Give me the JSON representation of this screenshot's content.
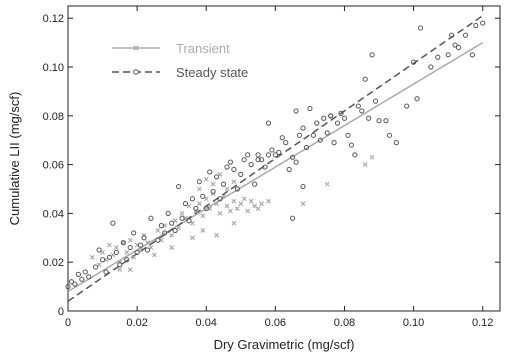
{
  "chart_data": {
    "type": "scatter",
    "xlabel": "Dry Gravimetric (mg/scf)",
    "ylabel": "Cumulative LII (mg/scf)",
    "xlim": [
      0,
      0.125
    ],
    "ylim": [
      0,
      0.125
    ],
    "x_ticks": [
      0,
      0.02,
      0.04,
      0.06,
      0.08,
      0.1,
      0.12
    ],
    "y_ticks": [
      0,
      0.02,
      0.04,
      0.06,
      0.08,
      0.1,
      0.12
    ],
    "x_tick_labels": [
      "0",
      "0.02",
      "0.04",
      "0.06",
      "0.08",
      "0.10",
      "0.12"
    ],
    "y_tick_labels": [
      "0",
      "0.02",
      "0.04",
      "0.06",
      "0.08",
      "0.10",
      "0.12"
    ],
    "grid": false,
    "legend_position": "top-left",
    "series": [
      {
        "name": "Transient",
        "marker": "x",
        "color": "#aaaaaa",
        "line_style": "solid",
        "fit": {
          "x": [
            0,
            0.12
          ],
          "y": [
            0.008,
            0.11
          ]
        },
        "points": [
          [
            0.007,
            0.022
          ],
          [
            0.009,
            0.019
          ],
          [
            0.01,
            0.024
          ],
          [
            0.011,
            0.021
          ],
          [
            0.012,
            0.027
          ],
          [
            0.013,
            0.023
          ],
          [
            0.014,
            0.026
          ],
          [
            0.015,
            0.02
          ],
          [
            0.016,
            0.028
          ],
          [
            0.017,
            0.024
          ],
          [
            0.018,
            0.029
          ],
          [
            0.019,
            0.022
          ],
          [
            0.02,
            0.027
          ],
          [
            0.021,
            0.025
          ],
          [
            0.022,
            0.031
          ],
          [
            0.023,
            0.028
          ],
          [
            0.024,
            0.026
          ],
          [
            0.026,
            0.033
          ],
          [
            0.027,
            0.029
          ],
          [
            0.028,
            0.035
          ],
          [
            0.03,
            0.031
          ],
          [
            0.031,
            0.037
          ],
          [
            0.032,
            0.034
          ],
          [
            0.033,
            0.04
          ],
          [
            0.034,
            0.038
          ],
          [
            0.035,
            0.043
          ],
          [
            0.036,
            0.036
          ],
          [
            0.037,
            0.041
          ],
          [
            0.038,
            0.044
          ],
          [
            0.039,
            0.039
          ],
          [
            0.04,
            0.046
          ],
          [
            0.041,
            0.042
          ],
          [
            0.042,
            0.048
          ],
          [
            0.043,
            0.044
          ],
          [
            0.044,
            0.04
          ],
          [
            0.045,
            0.047
          ],
          [
            0.046,
            0.043
          ],
          [
            0.047,
            0.041
          ],
          [
            0.048,
            0.045
          ],
          [
            0.049,
            0.042
          ],
          [
            0.05,
            0.044
          ],
          [
            0.051,
            0.046
          ],
          [
            0.052,
            0.041
          ],
          [
            0.053,
            0.045
          ],
          [
            0.054,
            0.043
          ],
          [
            0.055,
            0.042
          ],
          [
            0.056,
            0.044
          ],
          [
            0.038,
            0.05
          ],
          [
            0.04,
            0.054
          ],
          [
            0.042,
            0.052
          ],
          [
            0.044,
            0.056
          ],
          [
            0.046,
            0.05
          ],
          [
            0.048,
            0.053
          ],
          [
            0.036,
            0.03
          ],
          [
            0.039,
            0.033
          ],
          [
            0.058,
            0.045
          ],
          [
            0.068,
            0.044
          ],
          [
            0.075,
            0.052
          ],
          [
            0.086,
            0.06
          ],
          [
            0.088,
            0.063
          ],
          [
            0.03,
            0.026
          ],
          [
            0.025,
            0.023
          ],
          [
            0.018,
            0.017
          ],
          [
            0.015,
            0.017
          ],
          [
            0.043,
            0.031
          ],
          [
            0.048,
            0.036
          ]
        ]
      },
      {
        "name": "Steady state",
        "marker": "o",
        "color": "#555555",
        "line_style": "dashed",
        "fit": {
          "x": [
            0,
            0.12
          ],
          "y": [
            0.004,
            0.121
          ]
        },
        "points": [
          [
            0.0,
            0.01
          ],
          [
            0.001,
            0.012
          ],
          [
            0.002,
            0.011
          ],
          [
            0.003,
            0.015
          ],
          [
            0.004,
            0.013
          ],
          [
            0.005,
            0.016
          ],
          [
            0.006,
            0.014
          ],
          [
            0.008,
            0.018
          ],
          [
            0.009,
            0.025
          ],
          [
            0.01,
            0.021
          ],
          [
            0.011,
            0.016
          ],
          [
            0.012,
            0.022
          ],
          [
            0.013,
            0.036
          ],
          [
            0.014,
            0.024
          ],
          [
            0.015,
            0.019
          ],
          [
            0.016,
            0.028
          ],
          [
            0.017,
            0.021
          ],
          [
            0.018,
            0.026
          ],
          [
            0.019,
            0.032
          ],
          [
            0.02,
            0.024
          ],
          [
            0.021,
            0.027
          ],
          [
            0.022,
            0.03
          ],
          [
            0.023,
            0.025
          ],
          [
            0.024,
            0.038
          ],
          [
            0.026,
            0.029
          ],
          [
            0.027,
            0.035
          ],
          [
            0.028,
            0.032
          ],
          [
            0.029,
            0.04
          ],
          [
            0.03,
            0.036
          ],
          [
            0.031,
            0.033
          ],
          [
            0.032,
            0.051
          ],
          [
            0.033,
            0.038
          ],
          [
            0.034,
            0.044
          ],
          [
            0.035,
            0.037
          ],
          [
            0.036,
            0.046
          ],
          [
            0.037,
            0.042
          ],
          [
            0.038,
            0.053
          ],
          [
            0.039,
            0.047
          ],
          [
            0.04,
            0.042
          ],
          [
            0.041,
            0.057
          ],
          [
            0.042,
            0.049
          ],
          [
            0.043,
            0.055
          ],
          [
            0.044,
            0.046
          ],
          [
            0.045,
            0.052
          ],
          [
            0.046,
            0.059
          ],
          [
            0.047,
            0.061
          ],
          [
            0.048,
            0.058
          ],
          [
            0.049,
            0.05
          ],
          [
            0.05,
            0.056
          ],
          [
            0.051,
            0.062
          ],
          [
            0.052,
            0.064
          ],
          [
            0.053,
            0.06
          ],
          [
            0.054,
            0.052
          ],
          [
            0.055,
            0.062
          ],
          [
            0.056,
            0.062
          ],
          [
            0.057,
            0.059
          ],
          [
            0.058,
            0.064
          ],
          [
            0.059,
            0.066
          ],
          [
            0.06,
            0.064
          ],
          [
            0.061,
            0.065
          ],
          [
            0.062,
            0.071
          ],
          [
            0.063,
            0.069
          ],
          [
            0.064,
            0.058
          ],
          [
            0.065,
            0.063
          ],
          [
            0.066,
            0.082
          ],
          [
            0.067,
            0.072
          ],
          [
            0.068,
            0.075
          ],
          [
            0.069,
            0.067
          ],
          [
            0.07,
            0.083
          ],
          [
            0.071,
            0.072
          ],
          [
            0.072,
            0.077
          ],
          [
            0.073,
            0.07
          ],
          [
            0.074,
            0.079
          ],
          [
            0.075,
            0.073
          ],
          [
            0.076,
            0.08
          ],
          [
            0.077,
            0.069
          ],
          [
            0.078,
            0.077
          ],
          [
            0.079,
            0.081
          ],
          [
            0.08,
            0.079
          ],
          [
            0.081,
            0.072
          ],
          [
            0.082,
            0.068
          ],
          [
            0.083,
            0.064
          ],
          [
            0.084,
            0.084
          ],
          [
            0.085,
            0.082
          ],
          [
            0.086,
            0.095
          ],
          [
            0.087,
            0.079
          ],
          [
            0.088,
            0.105
          ],
          [
            0.089,
            0.086
          ],
          [
            0.09,
            0.078
          ],
          [
            0.092,
            0.078
          ],
          [
            0.093,
            0.072
          ],
          [
            0.095,
            0.069
          ],
          [
            0.098,
            0.084
          ],
          [
            0.1,
            0.102
          ],
          [
            0.101,
            0.087
          ],
          [
            0.102,
            0.116
          ],
          [
            0.105,
            0.1
          ],
          [
            0.107,
            0.104
          ],
          [
            0.11,
            0.105
          ],
          [
            0.111,
            0.113
          ],
          [
            0.112,
            0.109
          ],
          [
            0.113,
            0.108
          ],
          [
            0.115,
            0.113
          ],
          [
            0.117,
            0.105
          ],
          [
            0.118,
            0.117
          ],
          [
            0.12,
            0.118
          ],
          [
            0.065,
            0.038
          ],
          [
            0.055,
            0.064
          ],
          [
            0.058,
            0.077
          ],
          [
            0.068,
            0.051
          ],
          [
            0.076,
            0.08
          ],
          [
            0.066,
            0.061
          ]
        ]
      }
    ]
  }
}
